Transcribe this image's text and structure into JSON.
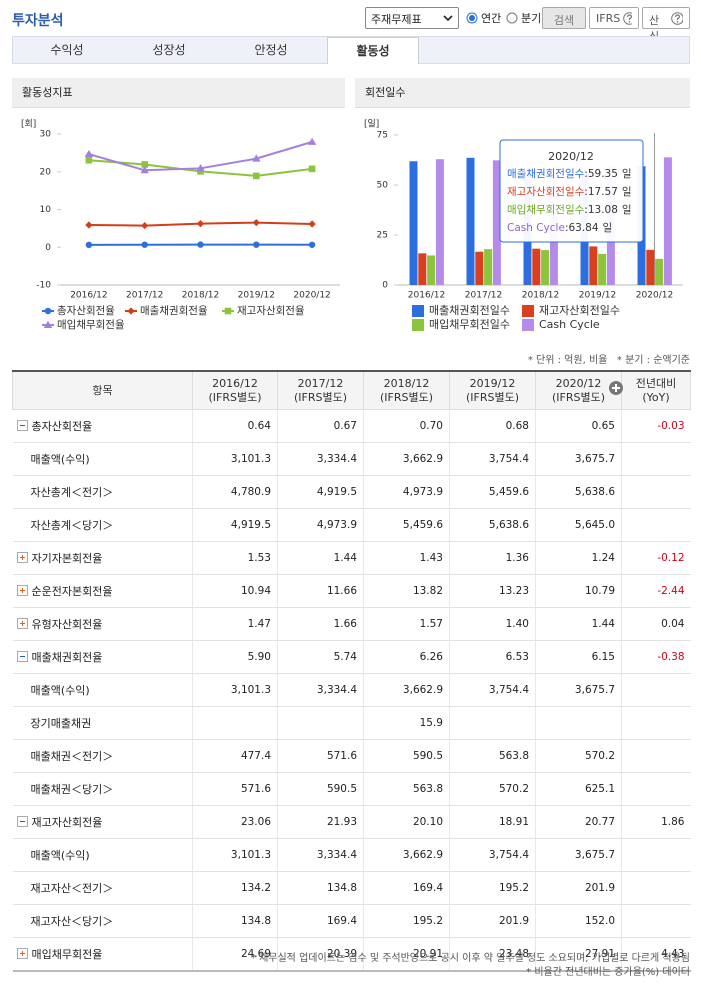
{
  "header": {
    "title": "투자분석",
    "select": "주재무제표",
    "radios": [
      "연간",
      "분기"
    ],
    "buttons": [
      "검색",
      "IFRS",
      "산식"
    ]
  },
  "tabs": [
    "수익성",
    "성장성",
    "안정성",
    "활동성"
  ],
  "active_tab": 3,
  "chart_data": [
    {
      "type": "line",
      "title": "활동성지표",
      "y_unit": "[회]",
      "categories": [
        "2016/12",
        "2017/12",
        "2018/12",
        "2019/12",
        "2020/12"
      ],
      "ylim": [
        -10,
        30
      ],
      "yticks": [
        -10,
        0,
        10,
        20,
        30
      ],
      "grid": false,
      "legend": "bottom",
      "series": [
        {
          "name": "총자산회전율",
          "color": "#2f6fdc",
          "marker": "circle",
          "values": [
            0.64,
            0.67,
            0.7,
            0.68,
            0.65
          ]
        },
        {
          "name": "매출채권회전율",
          "color": "#d43d1a",
          "marker": "diamond",
          "values": [
            5.9,
            5.74,
            6.26,
            6.53,
            6.15
          ]
        },
        {
          "name": "재고자산회전율",
          "color": "#8cc43c",
          "marker": "square",
          "values": [
            23.06,
            21.93,
            20.1,
            18.91,
            20.77
          ]
        },
        {
          "name": "매입채무회전율",
          "color": "#a57fe0",
          "marker": "triangle",
          "values": [
            24.69,
            20.39,
            20.91,
            23.48,
            27.91
          ]
        }
      ]
    },
    {
      "type": "bar",
      "title": "회전일수",
      "y_unit": "[일]",
      "categories": [
        "2016/12",
        "2017/12",
        "2018/12",
        "2019/12",
        "2020/12"
      ],
      "ylim": [
        0,
        75
      ],
      "yticks": [
        0,
        25,
        50,
        75
      ],
      "grid": false,
      "legend": "bottom",
      "series": [
        {
          "name": "매출채권회전일수",
          "color": "#2c6ee0",
          "values": [
            61.86,
            63.59,
            58.31,
            55.9,
            59.35
          ]
        },
        {
          "name": "재고자산회전일수",
          "color": "#d9401f",
          "values": [
            15.83,
            16.64,
            18.16,
            19.3,
            17.57
          ]
        },
        {
          "name": "매입채무회전일수",
          "color": "#8cc43c",
          "values": [
            14.78,
            17.9,
            17.45,
            15.55,
            13.08
          ]
        },
        {
          "name": "Cash Cycle",
          "color": "#b48be8",
          "values": [
            62.91,
            62.33,
            59.02,
            59.65,
            63.84
          ]
        }
      ],
      "tooltip": {
        "index": 4,
        "separator": ":",
        "unit": "일"
      }
    }
  ],
  "notes": [
    "* 단위 : 억원, 비율",
    "* 분기 : 순액기준"
  ],
  "table": {
    "header": [
      "항목",
      [
        "2016/12",
        "(IFRS별도)"
      ],
      [
        "2017/12",
        "(IFRS별도)"
      ],
      [
        "2018/12",
        "(IFRS별도)"
      ],
      [
        "2019/12",
        "(IFRS별도)"
      ],
      [
        "2020/12",
        "(IFRS별도)"
      ],
      [
        "전년대비",
        "(YoY)"
      ]
    ],
    "rows": [
      {
        "label": "총자산회전율",
        "toggle": "minus",
        "cells": [
          "0.64",
          "0.67",
          "0.70",
          "0.68",
          "0.65"
        ],
        "yoy": "-0.03"
      },
      {
        "label": "매출액(수익)",
        "cells": [
          "3,101.3",
          "3,334.4",
          "3,662.9",
          "3,754.4",
          "3,675.7"
        ]
      },
      {
        "label": "자산총계＜전기＞",
        "cells": [
          "4,780.9",
          "4,919.5",
          "4,973.9",
          "5,459.6",
          "5,638.6"
        ]
      },
      {
        "label": "자산총계＜당기＞",
        "cells": [
          "4,919.5",
          "4,973.9",
          "5,459.6",
          "5,638.6",
          "5,645.0"
        ]
      },
      {
        "label": "자기자본회전율",
        "toggle": "plus",
        "cells": [
          "1.53",
          "1.44",
          "1.43",
          "1.36",
          "1.24"
        ],
        "yoy": "-0.12"
      },
      {
        "label": "순운전자본회전율",
        "toggle": "plus",
        "cells": [
          "10.94",
          "11.66",
          "13.82",
          "13.23",
          "10.79"
        ],
        "yoy": "-2.44"
      },
      {
        "label": "유형자산회전율",
        "toggle": "plus",
        "cells": [
          "1.47",
          "1.66",
          "1.57",
          "1.40",
          "1.44"
        ],
        "yoy": "0.04"
      },
      {
        "label": "매출채권회전율",
        "toggle": "minus",
        "cells": [
          "5.90",
          "5.74",
          "6.26",
          "6.53",
          "6.15"
        ],
        "yoy": "-0.38"
      },
      {
        "label": "매출액(수익)",
        "cells": [
          "3,101.3",
          "3,334.4",
          "3,662.9",
          "3,754.4",
          "3,675.7"
        ]
      },
      {
        "label": "장기매출채권",
        "cells": [
          null,
          null,
          "15.9",
          null,
          null
        ]
      },
      {
        "label": "매출채권＜전기＞",
        "cells": [
          "477.4",
          "571.6",
          "590.5",
          "563.8",
          "570.2"
        ]
      },
      {
        "label": "매출채권＜당기＞",
        "cells": [
          "571.6",
          "590.5",
          "563.8",
          "570.2",
          "625.1"
        ]
      },
      {
        "label": "재고자산회전율",
        "toggle": "minus",
        "cells": [
          "23.06",
          "21.93",
          "20.10",
          "18.91",
          "20.77"
        ],
        "yoy": "1.86"
      },
      {
        "label": "매출액(수익)",
        "cells": [
          "3,101.3",
          "3,334.4",
          "3,662.9",
          "3,754.4",
          "3,675.7"
        ]
      },
      {
        "label": "재고자산＜전기＞",
        "cells": [
          "134.2",
          "134.8",
          "169.4",
          "195.2",
          "201.9"
        ]
      },
      {
        "label": "재고자산＜당기＞",
        "cells": [
          "134.8",
          "169.4",
          "195.2",
          "201.9",
          "152.0"
        ]
      },
      {
        "label": "매입채무회전율",
        "toggle": "plus",
        "cells": [
          "24.69",
          "20.39",
          "20.91",
          "23.48",
          "27.91"
        ],
        "yoy": "4.43"
      }
    ]
  },
  "footer": [
    "* 재무실적 업데이트는 검수 및 주석반영으로 공시 이후 약 일주일 정도 소요되며, 기업별로 다르게 적용됨",
    "* 비율간 전년대비는 증가율(%) 데이터"
  ]
}
